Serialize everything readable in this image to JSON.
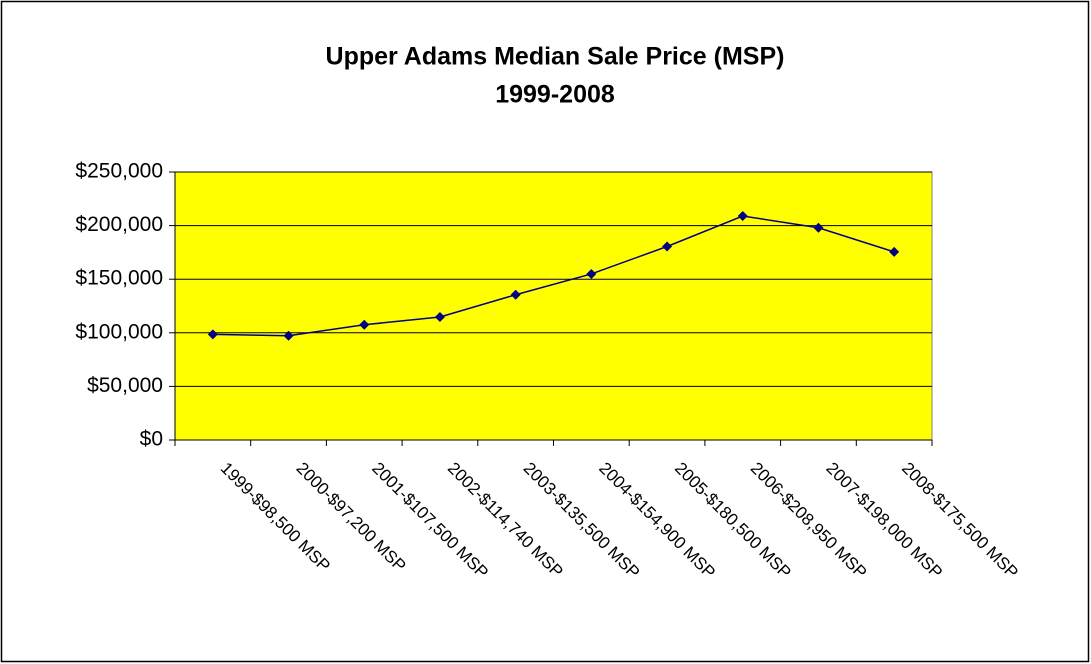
{
  "chart_data": {
    "type": "line",
    "title": "Upper Adams Median Sale Price (MSP)",
    "subtitle": "1999-2008",
    "categories": [
      "1999-$98,500 MSP",
      "2000-$97,200 MSP",
      "2001-$107,500 MSP",
      "2002-$114,740 MSP",
      "2003-$135,500 MSP",
      "2004-$154,900 MSP",
      "2005-$180,500 MSP",
      "2006-$208,950 MSP",
      "2007-$198,000 MSP",
      "2008-$175,500 MSP"
    ],
    "values": [
      98500,
      97200,
      107500,
      114740,
      135500,
      154900,
      180500,
      208950,
      198000,
      175500
    ],
    "color": "#000080",
    "plot_background": "#ffff00",
    "ylim": [
      0,
      250000
    ],
    "yticks": [
      {
        "value": 0,
        "label": "$0"
      },
      {
        "value": 50000,
        "label": "$50,000"
      },
      {
        "value": 100000,
        "label": "$100,000"
      },
      {
        "value": 150000,
        "label": "$150,000"
      },
      {
        "value": 200000,
        "label": "$200,000"
      },
      {
        "value": 250000,
        "label": "$250,000"
      }
    ],
    "grid": true
  }
}
